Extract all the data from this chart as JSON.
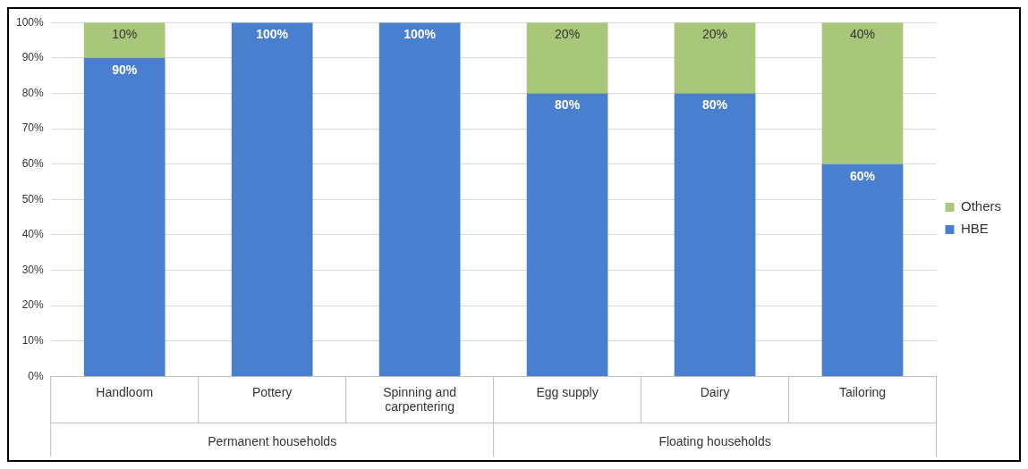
{
  "chart_data": {
    "type": "bar",
    "stacked": true,
    "categories": [
      "Handloom",
      "Pottery",
      "Spinning and carpentering",
      "Egg supply",
      "Dairy",
      "Tailoring"
    ],
    "series": [
      {
        "name": "HBE",
        "color": "#4a7fd0",
        "values": [
          90,
          100,
          100,
          80,
          80,
          60
        ],
        "value_labels": [
          "90%",
          "100%",
          "100%",
          "80%",
          "80%",
          "60%"
        ]
      },
      {
        "name": "Others",
        "color": "#a9c77a",
        "values": [
          10,
          0,
          0,
          20,
          20,
          40
        ],
        "value_labels": [
          "10%",
          null,
          null,
          "20%",
          "20%",
          "40%"
        ]
      }
    ],
    "ylim": [
      0,
      100
    ],
    "yticks": [
      {
        "value": 0,
        "label": "0%"
      },
      {
        "value": 10,
        "label": "10%"
      },
      {
        "value": 20,
        "label": "20%"
      },
      {
        "value": 30,
        "label": "30%"
      },
      {
        "value": 40,
        "label": "40%"
      },
      {
        "value": 50,
        "label": "50%"
      },
      {
        "value": 60,
        "label": "60%"
      },
      {
        "value": 70,
        "label": "70%"
      },
      {
        "value": 80,
        "label": "80%"
      },
      {
        "value": 90,
        "label": "90%"
      },
      {
        "value": 100,
        "label": "100%"
      }
    ],
    "grid": "y",
    "legend": "right",
    "annotations": [
      "Permanent households",
      "Floating households"
    ]
  }
}
